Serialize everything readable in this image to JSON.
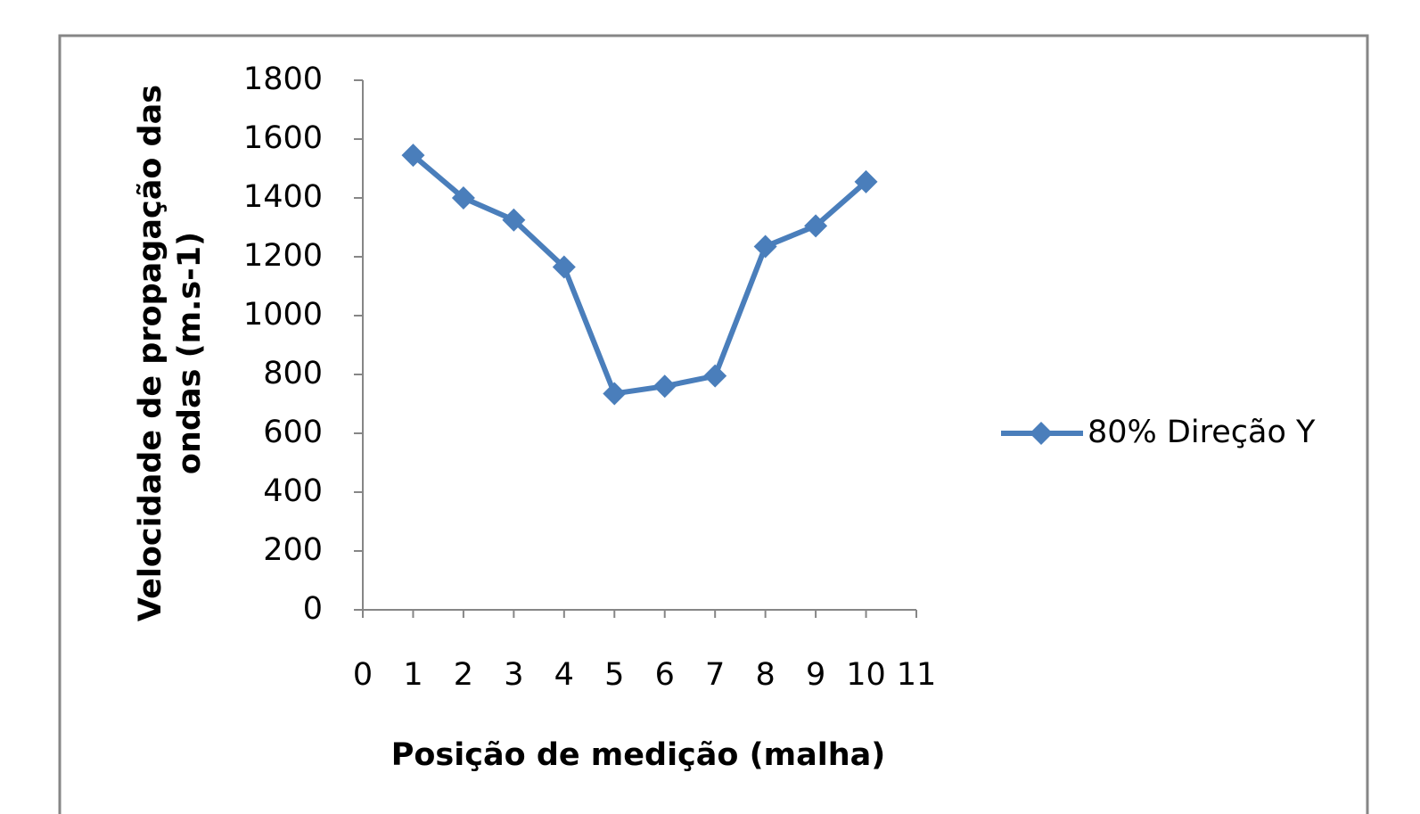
{
  "chart_data": {
    "type": "line",
    "xlabel": "Posição de medição (malha)",
    "ylabel": [
      "Velocidade de propagação das",
      "ondas (m.s-1)"
    ],
    "x": [
      1,
      2,
      3,
      4,
      5,
      6,
      7,
      8,
      9,
      10
    ],
    "series": [
      {
        "name": "80% Direção Y",
        "color": "#4a7ebb",
        "values": [
          1545,
          1400,
          1325,
          1165,
          735,
          760,
          795,
          1235,
          1305,
          1455
        ]
      }
    ],
    "xlim": [
      0,
      11
    ],
    "xticks": [
      0,
      1,
      2,
      3,
      4,
      5,
      6,
      7,
      8,
      9,
      10,
      11
    ],
    "ylim": [
      0,
      1800
    ],
    "yticks": [
      0,
      200,
      400,
      600,
      800,
      1000,
      1200,
      1400,
      1600,
      1800
    ],
    "grid": false,
    "legend": "right"
  }
}
